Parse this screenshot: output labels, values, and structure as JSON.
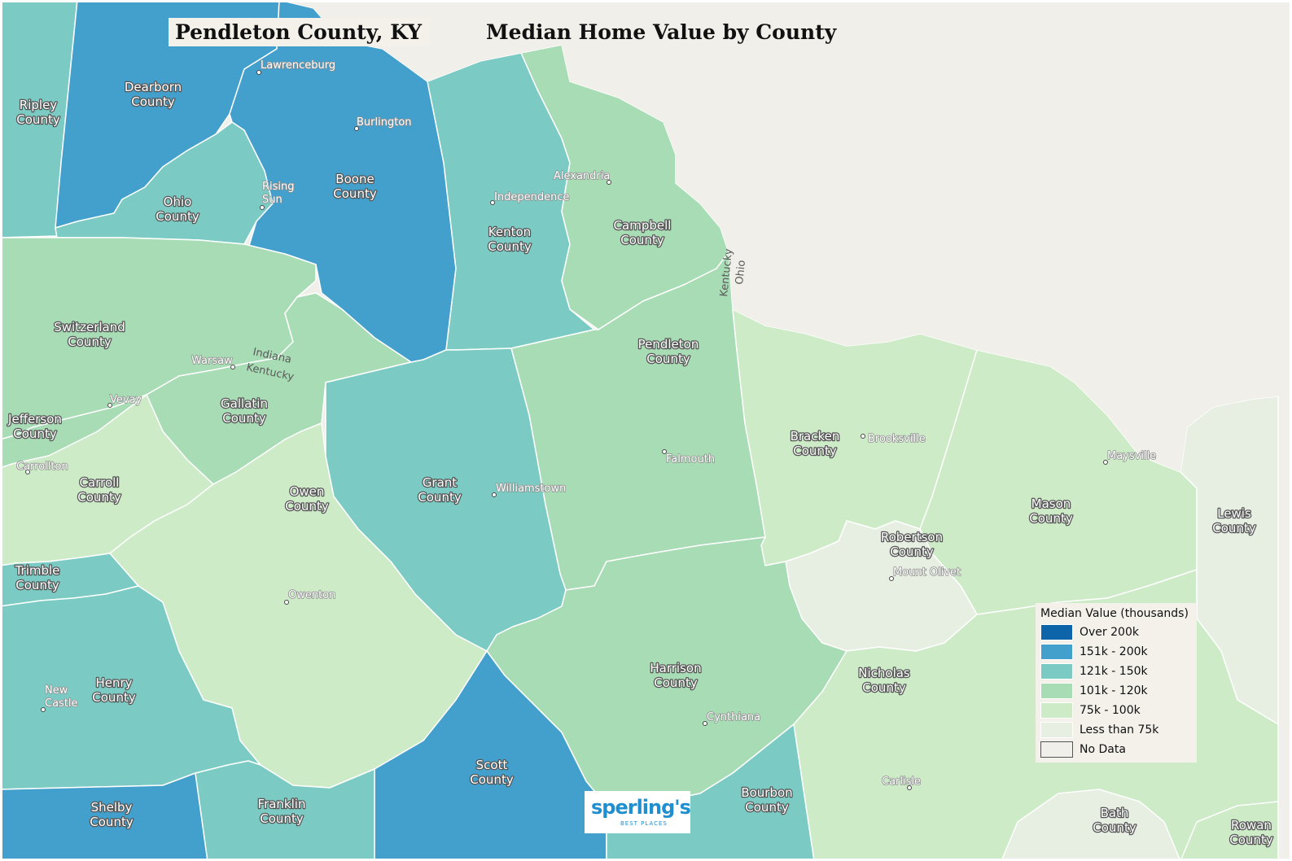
{
  "title": "Pendleton County, KY",
  "subtitle": "Median Home Value by County",
  "colors": {
    "over_200k": "#0d64a8",
    "151k_200k": "#43a0cc",
    "121k_150k": "#7bcbc4",
    "101k_120k": "#a8dcb5",
    "75k_100k": "#ccebc6",
    "less_75k": "#e6efe2",
    "no_data": "#f0efe9"
  },
  "legend": {
    "title": "Median Value (thousands)",
    "items": [
      {
        "label": "Over 200k",
        "color": "#0d64a8"
      },
      {
        "label": "151k - 200k",
        "color": "#43a0cc"
      },
      {
        "label": "121k - 150k",
        "color": "#7bcbc4"
      },
      {
        "label": "101k - 120k",
        "color": "#a8dcb5"
      },
      {
        "label": "75k - 100k",
        "color": "#ccebc6"
      },
      {
        "label": "Less than 75k",
        "color": "#e6efe2"
      },
      {
        "label": "No Data",
        "color": "#f0efe9"
      }
    ]
  },
  "counties": [
    {
      "name": "Ripley\nCounty",
      "category": "121k - 150k"
    },
    {
      "name": "Dearborn\nCounty",
      "category": "151k - 200k"
    },
    {
      "name": "Ohio\nCounty",
      "category": "121k - 150k"
    },
    {
      "name": "Boone\nCounty",
      "category": "151k - 200k"
    },
    {
      "name": "Kenton\nCounty",
      "category": "121k - 150k"
    },
    {
      "name": "Campbell\nCounty",
      "category": "101k - 120k"
    },
    {
      "name": "Switzerland\nCounty",
      "category": "101k - 120k"
    },
    {
      "name": "Gallatin\nCounty",
      "category": "101k - 120k"
    },
    {
      "name": "Jefferson\nCounty",
      "category": "101k - 120k"
    },
    {
      "name": "Pendleton\nCounty",
      "category": "101k - 120k"
    },
    {
      "name": "Bracken\nCounty",
      "category": "75k - 100k"
    },
    {
      "name": "Carroll\nCounty",
      "category": "75k - 100k"
    },
    {
      "name": "Owen\nCounty",
      "category": "75k - 100k"
    },
    {
      "name": "Grant\nCounty",
      "category": "121k - 150k"
    },
    {
      "name": "Mason\nCounty",
      "category": "75k - 100k"
    },
    {
      "name": "Lewis\nCounty",
      "category": "Less than 75k"
    },
    {
      "name": "Robertson\nCounty",
      "category": "Less than 75k"
    },
    {
      "name": "Trimble\nCounty",
      "category": "121k - 150k"
    },
    {
      "name": "Henry\nCounty",
      "category": "121k - 150k"
    },
    {
      "name": "Harrison\nCounty",
      "category": "101k - 120k"
    },
    {
      "name": "Nicholas\nCounty",
      "category": "75k - 100k"
    },
    {
      "name": "Scott\nCounty",
      "category": "151k - 200k"
    },
    {
      "name": "Shelby\nCounty",
      "category": "151k - 200k"
    },
    {
      "name": "Franklin\nCounty",
      "category": "121k - 150k"
    },
    {
      "name": "Bourbon\nCounty",
      "category": "121k - 150k"
    },
    {
      "name": "Bath\nCounty",
      "category": "Less than 75k"
    },
    {
      "name": "Rowan\nCounty",
      "category": "75k - 100k"
    }
  ],
  "cities": [
    "Lawrenceburg",
    "Burlington",
    "Rising\nSun",
    "Alexandria",
    "Independence",
    "Warsaw",
    "Vevay",
    "Carrollton",
    "Brooksville",
    "Falmouth",
    "Williamstown",
    "Maysville",
    "Mount Olivet",
    "Owenton",
    "New\nCastle",
    "Cynthiana",
    "Carlisle"
  ],
  "state_labels": [
    "Indiana",
    "Kentucky",
    "Kentucky",
    "Ohio"
  ],
  "logo": {
    "brand": "sperling's",
    "tagline": "BEST PLACES"
  }
}
